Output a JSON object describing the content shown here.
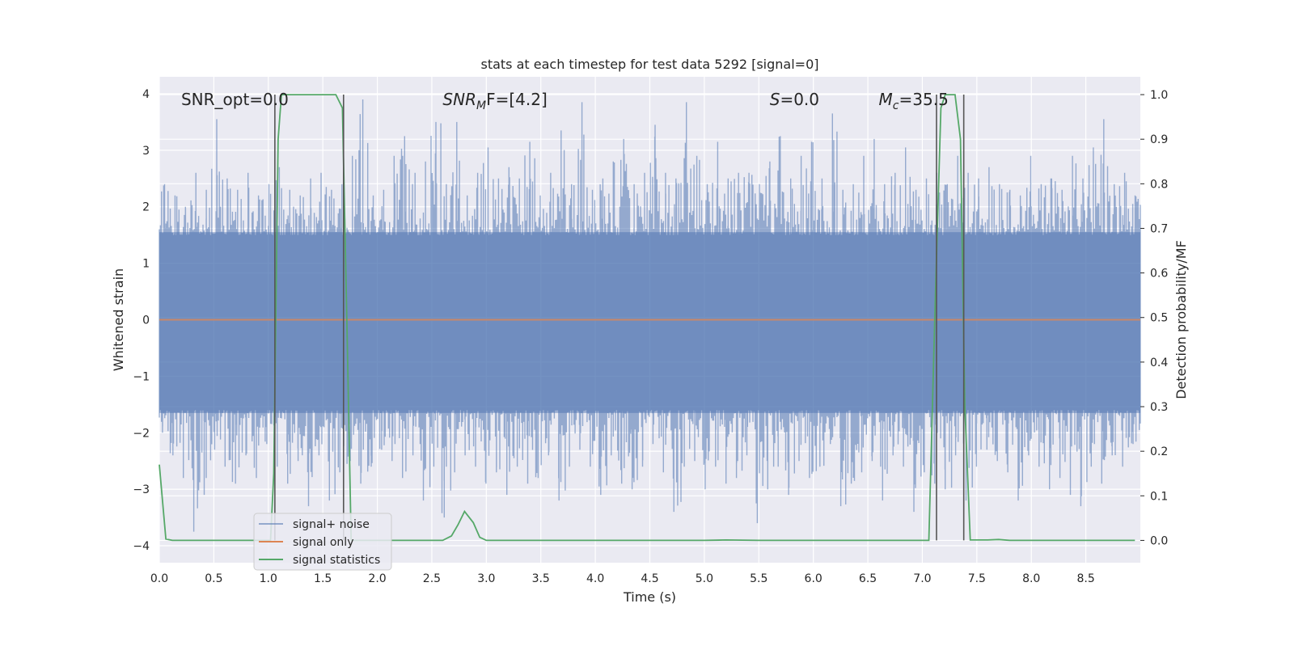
{
  "chart_data": {
    "type": "line",
    "title": "stats at each timestep for test data 5292 [signal=0]",
    "xlabel": "Time (s)",
    "ylabel": "Whitened strain",
    "ylabel_right": "Detection probability/MF",
    "xlim": [
      0.0,
      9.0
    ],
    "ylim": [
      -4.3,
      4.3
    ],
    "ylim_right": [
      -0.05,
      1.04
    ],
    "x_ticks": [
      "0.0",
      "0.5",
      "1.0",
      "1.5",
      "2.0",
      "2.5",
      "3.0",
      "3.5",
      "4.0",
      "4.5",
      "5.0",
      "5.5",
      "6.0",
      "6.5",
      "7.0",
      "7.5",
      "8.0",
      "8.5"
    ],
    "y_ticks": [
      "−4",
      "−3",
      "−2",
      "−1",
      "0",
      "1",
      "2",
      "3",
      "4"
    ],
    "y_ticks_right": [
      "0.0",
      "0.1",
      "0.2",
      "0.3",
      "0.4",
      "0.5",
      "0.6",
      "0.7",
      "0.8",
      "0.9",
      "1.0"
    ],
    "grid": true,
    "legend_position": "lower-left",
    "annotations": [
      {
        "prefix": "SNR_opt=0.0",
        "italic": "",
        "sub": "",
        "suffix": ""
      },
      {
        "prefix": "",
        "italic": "SNR",
        "sub": "M",
        "suffix": "F=[4.2]"
      },
      {
        "prefix": "",
        "italic": "S",
        "sub": "",
        "suffix": "=0.0"
      },
      {
        "prefix": "",
        "italic": "M",
        "sub": "c",
        "suffix": "=35.5"
      }
    ],
    "series": [
      {
        "name": "signal+ noise",
        "color": "#4c72b0",
        "kind": "noise",
        "envelope_max": [
          2.4,
          2.2,
          2.0,
          2.6,
          2.3,
          3.55,
          2.5,
          2.3,
          2.6,
          2.2,
          2.4,
          2.7,
          2.3,
          2.2,
          2.5,
          2.6,
          2.3,
          2.4,
          2.9,
          3.9,
          2.2,
          2.3,
          2.9,
          3.25,
          2.6,
          2.8,
          3.5,
          2.4,
          3.5,
          2.2,
          2.6,
          3.05,
          2.5,
          2.7,
          2.5,
          3.15,
          2.2,
          2.6,
          3.35,
          2.4,
          3.85,
          2.3,
          2.5,
          2.8,
          3.2,
          2.4,
          2.6,
          3.45,
          2.6,
          2.5,
          3.85,
          2.9,
          2.4,
          3.15,
          2.5,
          2.6,
          2.6,
          2.4,
          2.8,
          3.25,
          2.5,
          2.9,
          3.15,
          2.5,
          3.65,
          2.3,
          2.4,
          2.9,
          3.2,
          2.4,
          2.6,
          3.05,
          2.3,
          2.5,
          2.6,
          2.4,
          2.9,
          2.6,
          2.5,
          2.7,
          2.4,
          2.3,
          2.2,
          2.9,
          2.4,
          2.5,
          2.3,
          2.9,
          2.5,
          3.05,
          3.55,
          2.4,
          2.6,
          2.2
        ],
        "envelope_min": [
          -2.0,
          -2.4,
          -2.8,
          -3.75,
          -3.1,
          -2.3,
          -2.6,
          -2.9,
          -2.4,
          -2.8,
          -2.2,
          -2.6,
          -2.9,
          -2.5,
          -3.3,
          -2.4,
          -3.2,
          -2.7,
          -2.5,
          -2.9,
          -2.6,
          -2.3,
          -2.5,
          -2.8,
          -2.4,
          -3.2,
          -2.6,
          -3.5,
          -2.7,
          -2.4,
          -2.6,
          -2.9,
          -2.7,
          -3.1,
          -2.6,
          -2.9,
          -2.8,
          -2.4,
          -3.2,
          -2.6,
          -2.3,
          -2.6,
          -3.1,
          -2.4,
          -2.9,
          -3.0,
          -2.6,
          -2.2,
          -2.7,
          -3.4,
          -2.6,
          -2.5,
          -3.0,
          -2.6,
          -2.9,
          -2.8,
          -2.4,
          -3.6,
          -3.0,
          -2.6,
          -3.1,
          -2.5,
          -2.8,
          -2.6,
          -2.2,
          -3.3,
          -2.9,
          -2.7,
          -2.5,
          -3.2,
          -2.4,
          -2.6,
          -3.4,
          -2.7,
          -2.9,
          -3.0,
          -2.4,
          -3.2,
          -2.6,
          -2.3,
          -2.5,
          -2.7,
          -3.2,
          -2.4,
          -2.6,
          -3.0,
          -2.8,
          -3.1,
          -3.3,
          -2.6,
          -2.9,
          -2.4,
          -2.6,
          -2.2
        ]
      },
      {
        "name": "signal only",
        "color": "#dd8452",
        "kind": "line",
        "x": [
          0.0,
          9.0
        ],
        "y": [
          0.0,
          0.0
        ]
      },
      {
        "name": "signal statistics",
        "color": "#55a868",
        "kind": "line",
        "axis": "right",
        "x": [
          0.0,
          0.06,
          0.12,
          0.3,
          0.6,
          0.9,
          1.02,
          1.05,
          1.09,
          1.12,
          1.3,
          1.5,
          1.62,
          1.68,
          1.72,
          1.76,
          1.85,
          2.2,
          2.6,
          2.68,
          2.74,
          2.8,
          2.88,
          2.94,
          3.0,
          3.5,
          4.0,
          4.5,
          5.0,
          5.2,
          5.5,
          6.0,
          6.5,
          7.0,
          7.06,
          7.12,
          7.17,
          7.21,
          7.3,
          7.35,
          7.39,
          7.44,
          7.6,
          7.7,
          7.8,
          8.0,
          8.5,
          8.95
        ],
        "y": [
          0.17,
          0.003,
          0.0,
          0.0,
          0.0,
          0.0,
          0.0,
          0.15,
          0.9,
          1.0,
          1.0,
          1.0,
          1.0,
          0.97,
          0.5,
          0.0,
          0.0,
          0.0,
          0.0,
          0.01,
          0.035,
          0.065,
          0.04,
          0.007,
          0.0,
          0.0,
          0.0,
          0.0,
          0.0,
          0.001,
          0.0,
          0.0,
          0.0,
          0.0,
          0.0,
          0.55,
          0.97,
          1.0,
          1.0,
          0.9,
          0.3,
          0.001,
          0.001,
          0.002,
          0.0,
          0.0,
          0.0,
          0.0
        ]
      }
    ],
    "vertical_markers": [
      1.06,
      1.69,
      7.13,
      7.38
    ]
  }
}
